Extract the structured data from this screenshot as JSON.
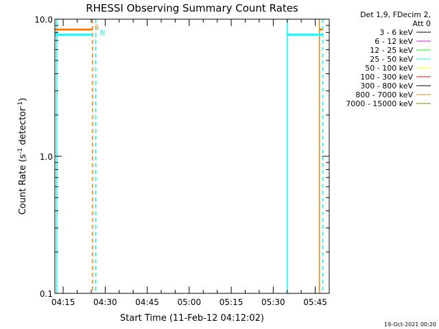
{
  "chart_data": {
    "type": "line",
    "title": "RHESSI Observing Summary Count Rates",
    "xlabel": "Start Time (11-Feb-12 04:12:02)",
    "ylabel": "Count Rate (s⁻¹ detector⁻¹)",
    "y_scale": "log",
    "ylim": [
      0.1,
      10.0
    ],
    "y_ticks": [
      {
        "value": 10.0,
        "label": "10.0"
      },
      {
        "value": 1.0,
        "label": "1.0"
      },
      {
        "value": 0.1,
        "label": "0.1"
      }
    ],
    "xlim": [
      "04:12:02",
      "05:50:00"
    ],
    "x_ticks": [
      "04:15",
      "04:30",
      "04:45",
      "05:00",
      "05:15",
      "05:30",
      "05:45"
    ],
    "legend_header": [
      "Det 1,9, FDecim 2,",
      "Att 0"
    ],
    "legend_position": "right",
    "series": [
      {
        "name": "3 - 6 keV",
        "color": "#000000",
        "segments": []
      },
      {
        "name": "6 - 12 keV",
        "color": "#ff00ff",
        "segments": []
      },
      {
        "name": "12 - 25 keV",
        "color": "#00ff00",
        "segments": []
      },
      {
        "name": "25 - 50 keV",
        "color": "#00ffff",
        "segments": [
          {
            "start": "04:12:02",
            "end": "04:25:30",
            "value": 7.7
          },
          {
            "start": "05:35:00",
            "end": "05:47:40",
            "value": 7.7
          }
        ]
      },
      {
        "name": "50 - 100 keV",
        "color": "#ffff00",
        "segments": []
      },
      {
        "name": "100 - 300 keV",
        "color": "#ff0000",
        "segments": []
      },
      {
        "name": "300 - 800 keV",
        "color": "#000000",
        "segments": []
      },
      {
        "name": "800 - 7000 keV",
        "color": "#ff7f00",
        "segments": [
          {
            "start": "04:12:02",
            "end": "04:25:30",
            "value": 8.4
          },
          {
            "start": "05:46:30",
            "end": "05:47:40",
            "value": 8.4
          }
        ]
      },
      {
        "name": "7000 - 15000 keV",
        "color": "#808000",
        "segments": []
      }
    ],
    "markers": [
      {
        "label": "S",
        "color": "#ff7f00",
        "time": "04:25:30"
      },
      {
        "label": "N",
        "color": "#00ffff",
        "time": "04:26:00"
      }
    ],
    "vertical_lines": [
      {
        "time": "04:12:45",
        "color": "#00ffff",
        "style": "solid"
      },
      {
        "time": "04:25:30",
        "color": "#ff7f00",
        "style": "dashed"
      },
      {
        "time": "04:26:40",
        "color": "#00ffff",
        "style": "dashed"
      },
      {
        "time": "05:35:00",
        "color": "#00ffff",
        "style": "solid"
      },
      {
        "time": "05:46:30",
        "color": "#ff7f00",
        "style": "solid"
      },
      {
        "time": "05:47:40",
        "color": "#00ffff",
        "style": "dashed"
      }
    ],
    "footer_timestamp": "19-Oct-2021 00:20"
  }
}
